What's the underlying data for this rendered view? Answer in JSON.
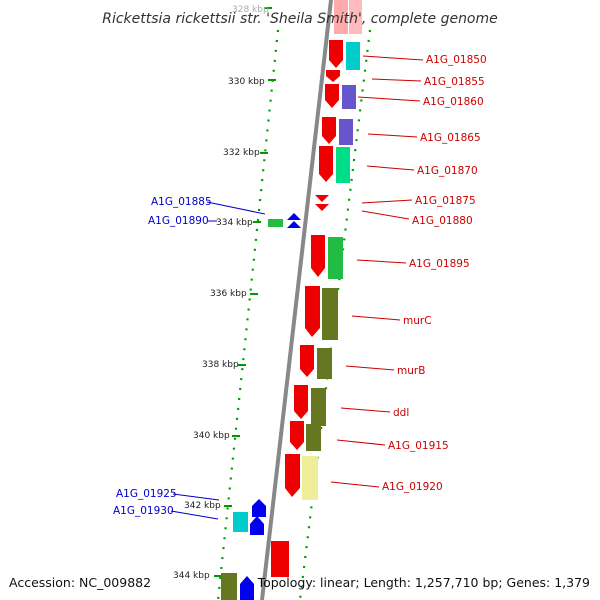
{
  "title": "Rickettsia rickettsii str. 'Sheila Smith', complete genome",
  "accession_text": "Accession: NC_009882",
  "topology_text": "Topology: linear; Length: 1,257,710 bp; Genes: 1,379",
  "ticks": [
    "328 kbp",
    "330 kbp",
    "332 kbp",
    "334 kbp",
    "336 kbp",
    "338 kbp",
    "340 kbp",
    "342 kbp",
    "344 kbp"
  ],
  "colors": {
    "gene": "#ff0000",
    "label_forward": "#cc0000",
    "label_reverse": "#0000cc",
    "reverse_gene": "#0000ee",
    "backbone": "#888888",
    "dotted_track": "#009900"
  },
  "genes_forward": [
    {
      "name": "A1G_01850",
      "cog_color": "#00cccc"
    },
    {
      "name": "A1G_01855",
      "cog_color": "#ff0000"
    },
    {
      "name": "A1G_01860",
      "cog_color": "#6655cc"
    },
    {
      "name": "A1G_01865",
      "cog_color": "#6655cc"
    },
    {
      "name": "A1G_01870",
      "cog_color": "#00dd88"
    },
    {
      "name": "A1G_01875",
      "cog_color": "#ff0000"
    },
    {
      "name": "A1G_01880",
      "cog_color": "#ff0000"
    },
    {
      "name": "A1G_01895",
      "cog_color": "#22bb44"
    },
    {
      "name": "murC",
      "cog_color": "#667722"
    },
    {
      "name": "murB",
      "cog_color": "#667722"
    },
    {
      "name": "ddl",
      "cog_color": "#667722"
    },
    {
      "name": "A1G_01915",
      "cog_color": "#667722"
    },
    {
      "name": "A1G_01920",
      "cog_color": "#eeee99"
    }
  ],
  "genes_reverse": [
    {
      "name": "A1G_01885",
      "cog_color": "#22bb44"
    },
    {
      "name": "A1G_01890",
      "cog_color": "#0000ee"
    },
    {
      "name": "A1G_01925",
      "cog_color": "#00cccc"
    },
    {
      "name": "A1G_01930",
      "cog_color": "#0000ee"
    }
  ]
}
